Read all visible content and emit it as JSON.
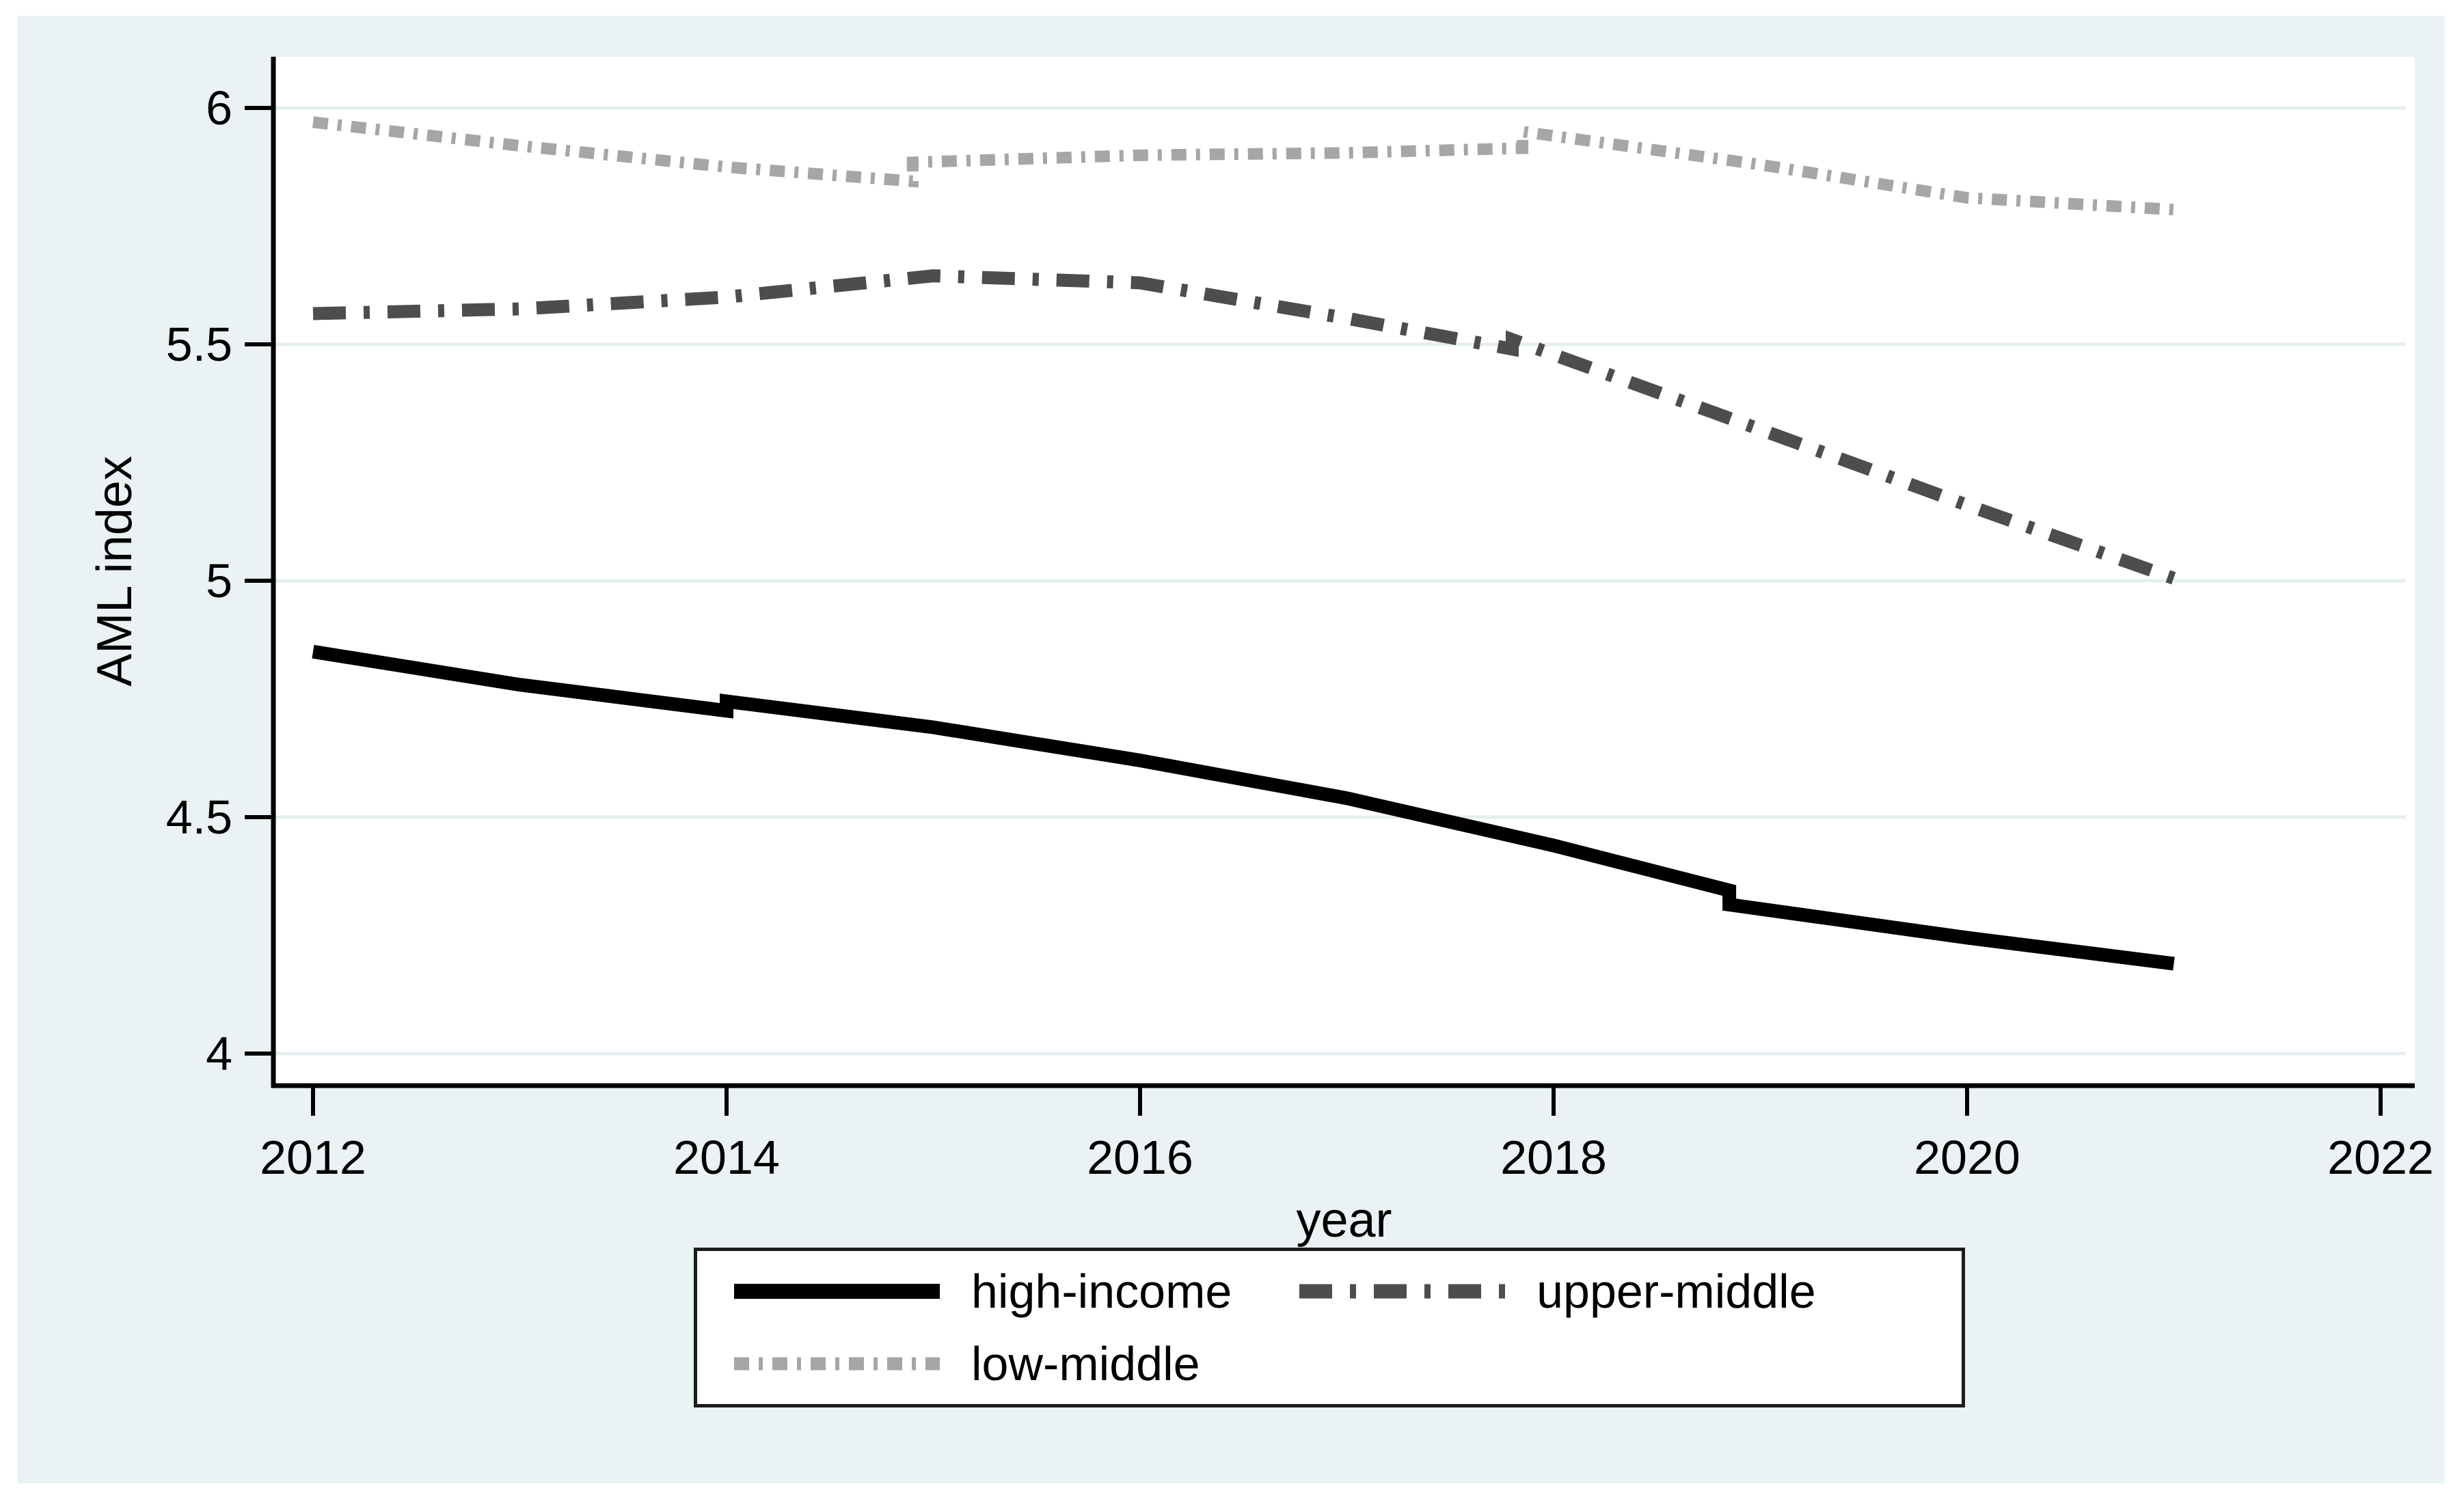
{
  "figure": {
    "background_color": "#eaf2f3",
    "plot_background": "#ffffff",
    "grid_color": "#e4eef0",
    "axis_color": "#000000",
    "text_color": "#000000"
  },
  "axes": {
    "x_label": "year",
    "y_label": "AML index",
    "x_tick_labels": [
      "2012",
      "2014",
      "2016",
      "2018",
      "2020",
      "2022"
    ],
    "y_tick_labels": [
      "4",
      "4.5",
      "5",
      "5.5",
      "6"
    ]
  },
  "legend": {
    "items": [
      {
        "label": "high-income",
        "series": "high-income"
      },
      {
        "label": "upper-middle",
        "series": "upper-middle"
      },
      {
        "label": "low-middle",
        "series": "low-middle"
      }
    ]
  },
  "chart_data": {
    "type": "line",
    "title": "",
    "xlabel": "year",
    "ylabel": "AML index",
    "x": [
      2012,
      2013,
      2014,
      2015,
      2016,
      2017,
      2018,
      2019,
      2020,
      2021
    ],
    "xticks": [
      2012,
      2014,
      2016,
      2018,
      2020,
      2022
    ],
    "yticks": [
      4,
      4.5,
      5,
      5.5,
      6
    ],
    "xlim": [
      2011.81,
      2022.17
    ],
    "ylim": [
      3.93,
      6.11
    ],
    "grid": true,
    "legend_position": "bottom",
    "series": [
      {
        "name": "high-income",
        "color": "#000000",
        "style": "solid",
        "line_width": 20,
        "values": [
          4.85,
          4.78,
          4.73,
          4.69,
          4.62,
          4.54,
          4.44,
          4.33,
          4.25,
          4.19
        ],
        "path": [
          [
            2012,
            4.85
          ],
          [
            2013,
            4.78
          ],
          [
            2014,
            4.725
          ],
          [
            2014,
            4.745
          ],
          [
            2015,
            4.69
          ],
          [
            2016,
            4.62
          ],
          [
            2017,
            4.54
          ],
          [
            2018,
            4.44
          ],
          [
            2018.85,
            4.345
          ],
          [
            2018.85,
            4.315
          ],
          [
            2020,
            4.245
          ],
          [
            2021,
            4.19
          ]
        ]
      },
      {
        "name": "upper-middle",
        "color": "#4d4d4d",
        "style": "dash-dot",
        "line_width": 19,
        "values": [
          5.56,
          5.58,
          5.6,
          5.64,
          5.63,
          5.56,
          5.49,
          5.32,
          5.16,
          5.0
        ],
        "path": [
          [
            2012,
            5.565
          ],
          [
            2013,
            5.575
          ],
          [
            2014,
            5.6
          ],
          [
            2015,
            5.645
          ],
          [
            2016,
            5.63
          ],
          [
            2017,
            5.555
          ],
          [
            2017.8,
            5.49
          ],
          [
            2017.8,
            5.51
          ],
          [
            2019,
            5.32
          ],
          [
            2020,
            5.16
          ],
          [
            2021,
            5.005
          ]
        ]
      },
      {
        "name": "low-middle",
        "color": "#a6a6a6",
        "style": "short-dash-dot",
        "line_width": 17,
        "values": [
          5.97,
          5.92,
          5.87,
          5.85,
          5.9,
          5.91,
          5.92,
          5.88,
          5.81,
          5.78
        ],
        "path": [
          [
            2012,
            5.97
          ],
          [
            2013,
            5.92
          ],
          [
            2014,
            5.875
          ],
          [
            2014.9,
            5.845
          ],
          [
            2014.9,
            5.885
          ],
          [
            2016,
            5.9
          ],
          [
            2017,
            5.905
          ],
          [
            2017.85,
            5.915
          ],
          [
            2017.85,
            5.95
          ],
          [
            2019,
            5.88
          ],
          [
            2020,
            5.81
          ],
          [
            2021,
            5.785
          ]
        ]
      }
    ]
  }
}
